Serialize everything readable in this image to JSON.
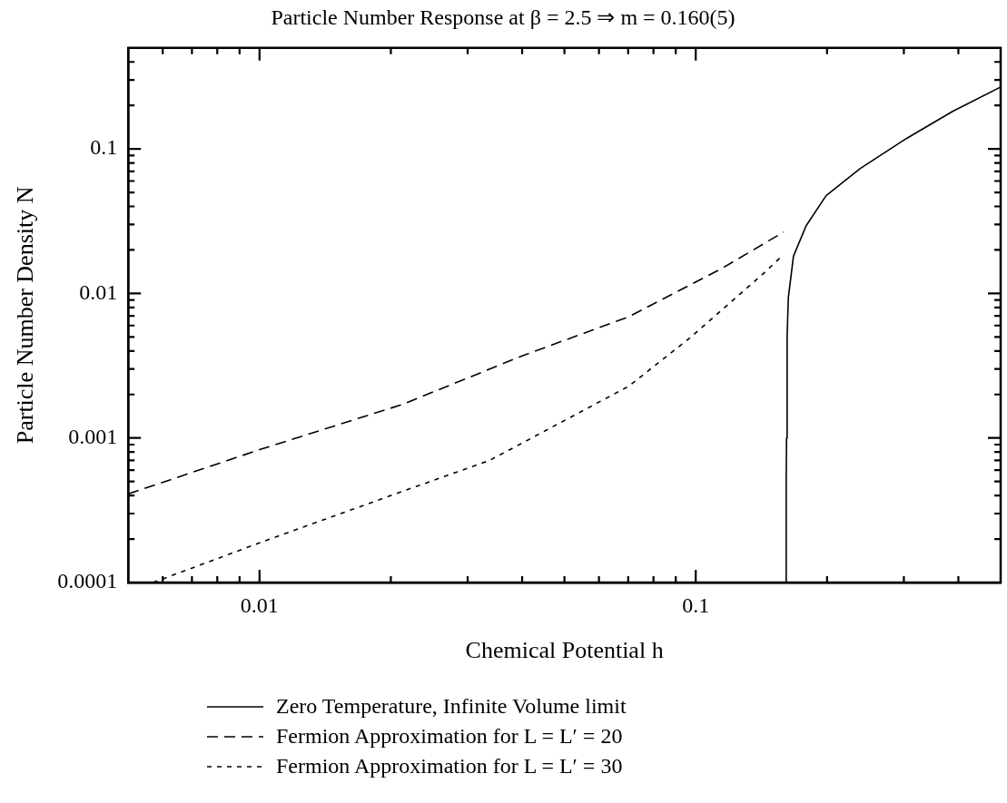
{
  "chart_data": {
    "type": "line",
    "title": "Particle Number Response at β = 2.5 ⇒ m = 0.160(5)",
    "xlabel": "Chemical Potential h",
    "ylabel": "Particle Number Density N",
    "log": "xy",
    "grid": false,
    "legend": "bottom",
    "xlim": [
      0.005,
      0.5
    ],
    "ylim": [
      0.0001,
      0.5
    ],
    "xticks": [
      {
        "value": 0.006,
        "label": null
      },
      {
        "value": 0.007,
        "label": null
      },
      {
        "value": 0.008,
        "label": null
      },
      {
        "value": 0.009,
        "label": null
      },
      0.01,
      {
        "value": 0.02,
        "label": null
      },
      {
        "value": 0.03,
        "label": null
      },
      {
        "value": 0.04,
        "label": null
      },
      {
        "value": 0.05,
        "label": null
      },
      {
        "value": 0.06,
        "label": null
      },
      {
        "value": 0.07,
        "label": null
      },
      {
        "value": 0.08,
        "label": null
      },
      {
        "value": 0.09,
        "label": null
      },
      0.1,
      {
        "value": 0.2,
        "label": null
      },
      {
        "value": 0.3,
        "label": null
      },
      {
        "value": 0.4,
        "label": null
      }
    ],
    "yticks": [
      0.0001,
      {
        "value": 0.0002,
        "label": null
      },
      {
        "value": 0.0003,
        "label": null
      },
      {
        "value": 0.0004,
        "label": null
      },
      {
        "value": 0.0005,
        "label": null
      },
      {
        "value": 0.0006,
        "label": null
      },
      {
        "value": 0.0007,
        "label": null
      },
      {
        "value": 0.0008,
        "label": null
      },
      {
        "value": 0.0009,
        "label": null
      },
      0.001,
      {
        "value": 0.002,
        "label": null
      },
      {
        "value": 0.003,
        "label": null
      },
      {
        "value": 0.004,
        "label": null
      },
      {
        "value": 0.005,
        "label": null
      },
      {
        "value": 0.006,
        "label": null
      },
      {
        "value": 0.007,
        "label": null
      },
      {
        "value": 0.008,
        "label": null
      },
      {
        "value": 0.009,
        "label": null
      },
      0.01,
      {
        "value": 0.02,
        "label": null
      },
      {
        "value": 0.03,
        "label": null
      },
      {
        "value": 0.04,
        "label": null
      },
      {
        "value": 0.05,
        "label": null
      },
      {
        "value": 0.06,
        "label": null
      },
      {
        "value": 0.07,
        "label": null
      },
      {
        "value": 0.08,
        "label": null
      },
      {
        "value": 0.09,
        "label": null
      },
      0.1,
      {
        "value": 0.2,
        "label": null
      },
      {
        "value": 0.3,
        "label": null
      },
      {
        "value": 0.4,
        "label": null
      }
    ],
    "series": [
      {
        "name": "Zero Temperature, Infinite Volume limit",
        "color": "#000000",
        "line_style": "solid",
        "x": [
          0.161,
          0.1612,
          0.1615,
          0.162,
          0.163,
          0.1675,
          0.179,
          0.199,
          0.238,
          0.304,
          0.388,
          0.5
        ],
        "values": [
          0.0001,
          0.0005,
          0.001,
          0.005,
          0.0093,
          0.0181,
          0.0293,
          0.0475,
          0.073,
          0.118,
          0.182,
          0.268
        ]
      },
      {
        "name": "Fermion Approximation for L = L′ = 20",
        "color": "#000000",
        "line_style": "dashed",
        "x": [
          0.005,
          0.01,
          0.0213,
          0.04,
          0.0702,
          0.1148,
          0.159
        ],
        "values": [
          0.00041,
          0.00083,
          0.00171,
          0.0037,
          0.0069,
          0.0149,
          0.0266
        ]
      },
      {
        "name": "Fermion Approximation for L = L′ = 30",
        "color": "#000000",
        "line_style": "dotted",
        "x": [
          0.0057,
          0.01,
          0.02,
          0.0337,
          0.0702,
          0.097,
          0.1436,
          0.1575
        ],
        "values": [
          0.0001,
          0.000188,
          0.0004,
          0.0007,
          0.00228,
          0.00493,
          0.0139,
          0.0181
        ]
      }
    ]
  }
}
